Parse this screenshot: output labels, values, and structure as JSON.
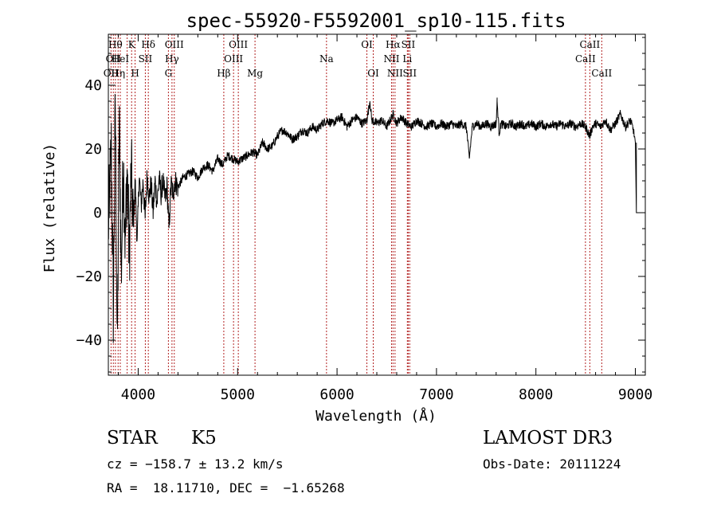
{
  "chart_data": {
    "type": "line",
    "title": "spec-55920-F5592001_sp10-115.fits",
    "xlabel": "Wavelength (Å)",
    "ylabel": "Flux (relative)",
    "xlim": [
      3700,
      9100
    ],
    "ylim": [
      -51,
      56
    ],
    "xticks": [
      {
        "value": 4000,
        "label": "4000"
      },
      {
        "value": 5000,
        "label": "5000"
      },
      {
        "value": 6000,
        "label": "6000"
      },
      {
        "value": 7000,
        "label": "7000"
      },
      {
        "value": 8000,
        "label": "8000"
      },
      {
        "value": 9000,
        "label": "9000"
      }
    ],
    "yticks": [
      {
        "value": -40,
        "label": "−40"
      },
      {
        "value": -20,
        "label": "−20"
      },
      {
        "value": 0,
        "label": "0"
      },
      {
        "value": 20,
        "label": "20"
      },
      {
        "value": 40,
        "label": "40"
      }
    ],
    "series": [
      {
        "name": "spectrum",
        "x": [
          3700,
          3730,
          3750,
          3770,
          3790,
          3810,
          3830,
          3850,
          3870,
          3890,
          3910,
          3930,
          3950,
          3970,
          3990,
          4010,
          4030,
          4050,
          4070,
          4090,
          4110,
          4130,
          4150,
          4170,
          4190,
          4210,
          4230,
          4250,
          4270,
          4290,
          4310,
          4330,
          4350,
          4370,
          4400,
          4450,
          4500,
          4550,
          4600,
          4650,
          4700,
          4750,
          4800,
          4850,
          4900,
          4950,
          5000,
          5050,
          5100,
          5150,
          5200,
          5250,
          5300,
          5350,
          5400,
          5450,
          5500,
          5550,
          5600,
          5650,
          5700,
          5750,
          5800,
          5850,
          5900,
          5950,
          6000,
          6050,
          6100,
          6150,
          6200,
          6250,
          6300,
          6330,
          6350,
          6400,
          6450,
          6500,
          6550,
          6563,
          6600,
          6620,
          6650,
          6700,
          6750,
          6800,
          6850,
          6900,
          6950,
          7000,
          7050,
          7100,
          7150,
          7200,
          7250,
          7300,
          7330,
          7360,
          7400,
          7450,
          7500,
          7550,
          7600,
          7610,
          7630,
          7650,
          7700,
          7750,
          7800,
          7850,
          7900,
          7950,
          8000,
          8050,
          8100,
          8150,
          8200,
          8250,
          8300,
          8350,
          8400,
          8450,
          8500,
          8540,
          8570,
          8600,
          8650,
          8700,
          8750,
          8800,
          8850,
          8900,
          8950,
          8980,
          9000,
          9010
        ],
        "y": [
          -5,
          20,
          -30,
          35,
          -45,
          30,
          -20,
          18,
          -10,
          15,
          -15,
          14,
          -5,
          10,
          -10,
          12,
          2,
          10,
          -2,
          12,
          5,
          9,
          0,
          10,
          3,
          11,
          6,
          10,
          4,
          8,
          -5,
          9,
          6,
          10,
          8,
          11,
          12,
          13,
          11,
          14,
          15,
          13,
          17,
          15,
          18,
          17,
          16,
          17,
          18,
          19,
          18,
          22,
          20,
          21,
          24,
          26,
          25,
          23,
          24,
          26,
          25,
          27,
          26,
          28,
          29,
          28,
          29,
          30,
          27,
          29,
          30,
          28,
          29,
          35,
          29,
          28,
          29,
          27,
          30,
          31,
          28,
          29,
          30,
          28,
          27,
          29,
          28,
          27,
          28,
          27,
          28,
          27,
          28,
          27,
          28,
          27,
          17,
          27,
          28,
          27,
          28,
          27,
          28,
          35,
          25,
          28,
          27,
          28,
          27,
          28,
          27,
          28,
          27,
          28,
          27,
          28,
          27,
          28,
          27,
          28,
          27,
          28,
          27,
          24,
          27,
          28,
          27,
          29,
          26,
          28,
          31,
          27,
          29,
          26,
          22,
          0
        ]
      }
    ],
    "lines": [
      {
        "w": 3727,
        "name": "OII",
        "row": 3
      },
      {
        "w": 3750,
        "name": "OII",
        "row": 2
      },
      {
        "w": 3771,
        "name": "Hθ",
        "row": 1
      },
      {
        "w": 3798,
        "name": "Hη",
        "row": 3
      },
      {
        "w": 3820,
        "name": "HeI",
        "row": 2
      },
      {
        "w": 3889,
        "name": "",
        "row": 0
      },
      {
        "w": 3934,
        "name": "K",
        "row": 1
      },
      {
        "w": 3969,
        "name": "H",
        "row": 3
      },
      {
        "w": 4072,
        "name": "SII",
        "row": 2
      },
      {
        "w": 4102,
        "name": "Hδ",
        "row": 1
      },
      {
        "w": 4304,
        "name": "G",
        "row": 3
      },
      {
        "w": 4340,
        "name": "Hγ",
        "row": 2
      },
      {
        "w": 4363,
        "name": "OIII",
        "row": 1
      },
      {
        "w": 4861,
        "name": "Hβ",
        "row": 3
      },
      {
        "w": 4959,
        "name": "OIII",
        "row": 2
      },
      {
        "w": 5007,
        "name": "OIII",
        "row": 1
      },
      {
        "w": 5175,
        "name": "Mg",
        "row": 3
      },
      {
        "w": 5894,
        "name": "Na",
        "row": 2
      },
      {
        "w": 6300,
        "name": "OI",
        "row": 1
      },
      {
        "w": 6364,
        "name": "OI",
        "row": 3
      },
      {
        "w": 6548,
        "name": "NII",
        "row": 2
      },
      {
        "w": 6563,
        "name": "Hα",
        "row": 1
      },
      {
        "w": 6583,
        "name": "NII",
        "row": 3
      },
      {
        "w": 6707,
        "name": "Li",
        "row": 2
      },
      {
        "w": 6716,
        "name": "SII",
        "row": 1
      },
      {
        "w": 6731,
        "name": "SII",
        "row": 3
      },
      {
        "w": 8498,
        "name": "CaII",
        "row": 2
      },
      {
        "w": 8542,
        "name": "CaII",
        "row": 1
      },
      {
        "w": 8662,
        "name": "CaII",
        "row": 3
      }
    ]
  },
  "info": {
    "class_label": "STAR",
    "subclass": "K5",
    "survey": "LAMOST DR3",
    "cz": "cz = −158.7 ± 13.2 km/s",
    "obs_date": "Obs-Date: 20111224",
    "radec": "RA =  18.11710, DEC =  −1.65268"
  }
}
